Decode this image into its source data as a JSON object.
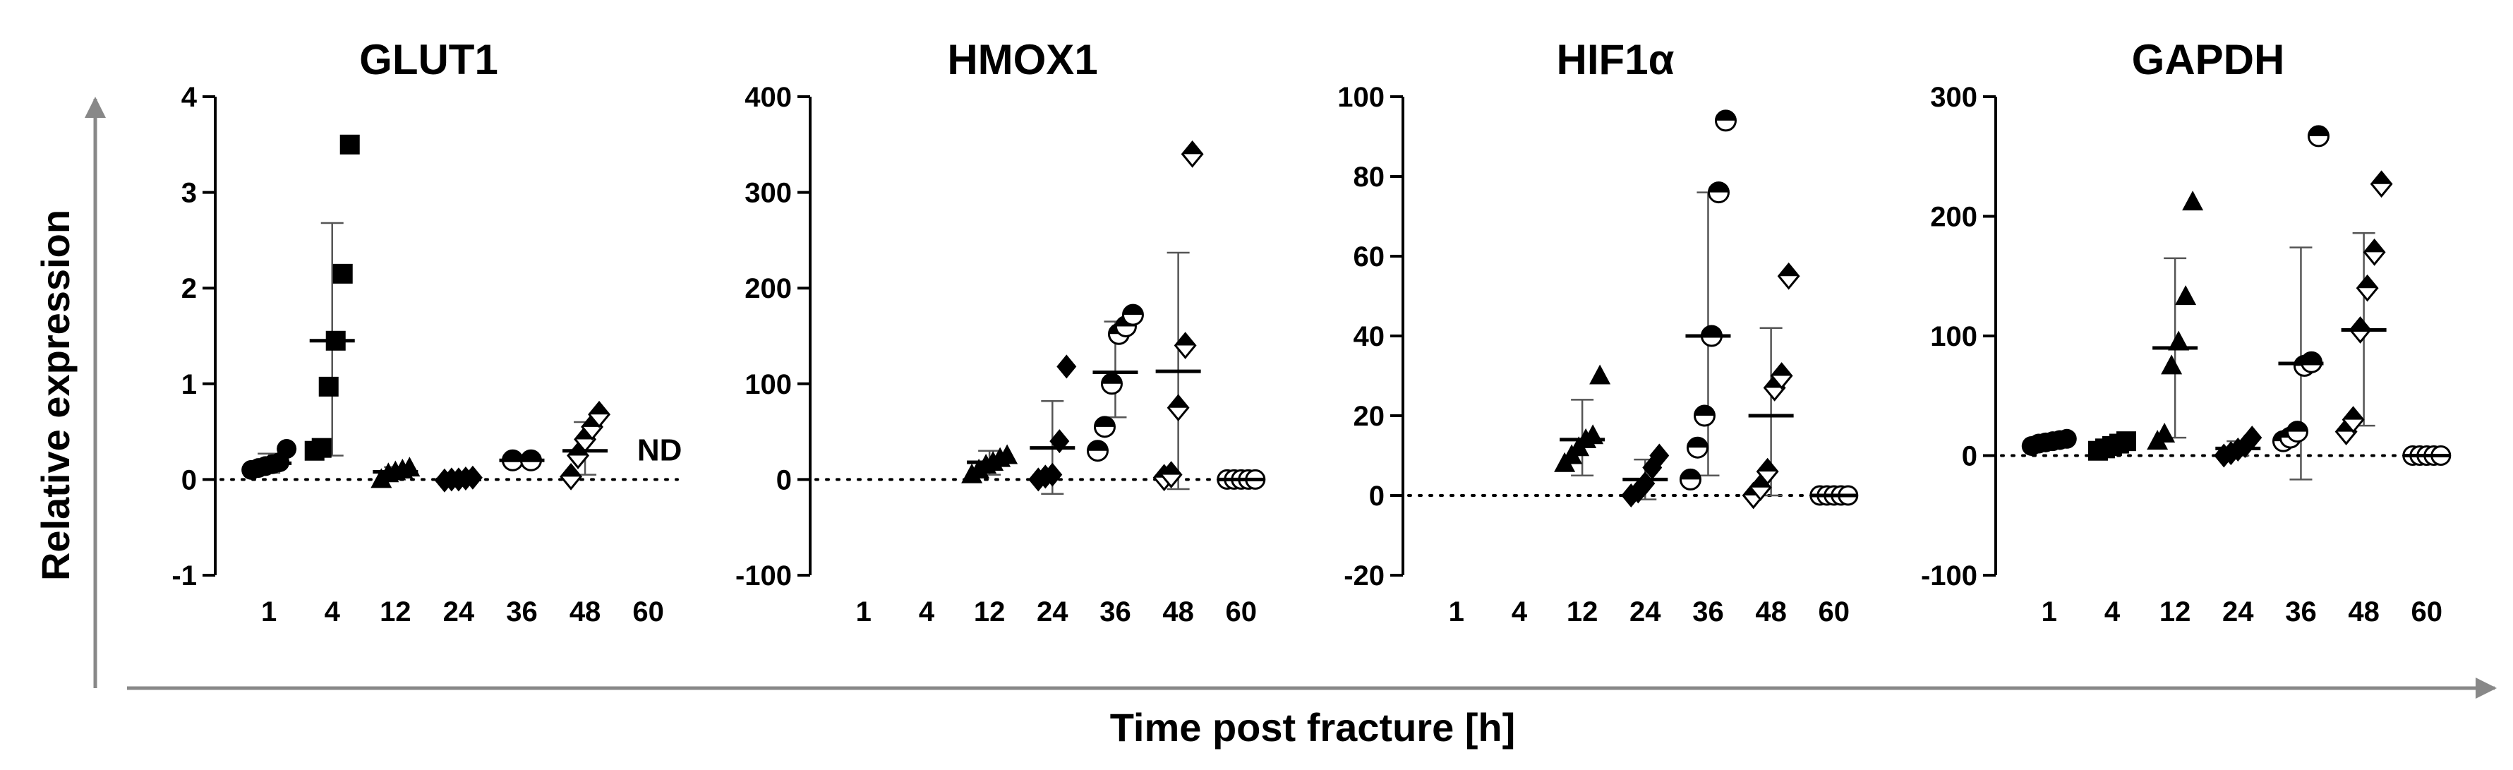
{
  "figure": {
    "ylabel": "Relative expression",
    "xlabel": "Time post fracture [h]"
  },
  "chart_data": [
    {
      "type": "scatter",
      "title": "GLUT1",
      "categories": [
        "1",
        "4",
        "12",
        "24",
        "36",
        "48",
        "60"
      ],
      "ylim": [
        -1,
        4
      ],
      "yticks": [
        -1,
        0,
        1,
        2,
        3,
        4
      ],
      "marker": "circle",
      "marker_fill": "full",
      "annotation": "ND",
      "groups": [
        {
          "x": "1",
          "points": [
            0.1,
            0.12,
            0.14,
            0.16,
            0.18,
            0.32
          ],
          "mean": 0.17,
          "sd_low": 0.07,
          "sd_high": 0.27
        },
        {
          "x": "4",
          "marker": "square",
          "points": [
            0.3,
            0.33,
            0.97,
            1.45,
            2.15,
            3.5
          ],
          "mean": 1.45,
          "sd_low": 0.25,
          "sd_high": 2.68
        },
        {
          "x": "12",
          "marker": "triangle",
          "points": [
            0.0,
            0.06,
            0.08,
            0.1,
            0.12
          ],
          "mean": 0.08,
          "sd_low": 0.03,
          "sd_high": 0.13
        },
        {
          "x": "24",
          "marker": "diamond",
          "points": [
            -0.01,
            0.0,
            0.0,
            0.01,
            0.02
          ],
          "mean": 0.0,
          "sd_low": -0.02,
          "sd_high": 0.02
        },
        {
          "x": "36",
          "marker": "circle-half",
          "points": [
            0.2,
            0.2
          ],
          "mean": 0.2
        },
        {
          "x": "48",
          "marker": "diamond-half",
          "points": [
            0.03,
            0.25,
            0.42,
            0.55,
            0.68
          ],
          "mean": 0.3,
          "sd_low": 0.05,
          "sd_high": 0.6
        },
        {
          "x": "60",
          "points": []
        }
      ]
    },
    {
      "type": "scatter",
      "title": "HMOX1",
      "categories": [
        "1",
        "4",
        "12",
        "24",
        "36",
        "48",
        "60"
      ],
      "ylim": [
        -100,
        400
      ],
      "yticks": [
        -100,
        0,
        100,
        200,
        300,
        400
      ],
      "groups": [
        {
          "x": "1",
          "points": []
        },
        {
          "x": "4",
          "points": []
        },
        {
          "x": "12",
          "marker": "triangle",
          "points": [
            5,
            10,
            15,
            18,
            22,
            25
          ],
          "mean": 18,
          "sd_low": 5,
          "sd_high": 30
        },
        {
          "x": "24",
          "marker": "diamond",
          "points": [
            0,
            3,
            5,
            40,
            118
          ],
          "mean": 33,
          "sd_low": -15,
          "sd_high": 82
        },
        {
          "x": "36",
          "marker": "circle-half",
          "points": [
            30,
            55,
            100,
            152,
            160,
            172
          ],
          "mean": 112,
          "sd_low": 65,
          "sd_high": 165
        },
        {
          "x": "48",
          "marker": "diamond-half",
          "points": [
            2,
            5,
            75,
            140,
            340
          ],
          "mean": 113,
          "sd_low": -10,
          "sd_high": 237
        },
        {
          "x": "60",
          "marker": "circle-open",
          "points": [
            0,
            0,
            0,
            0,
            0
          ],
          "mean": 0
        }
      ]
    },
    {
      "type": "scatter",
      "title": "HIF1α",
      "categories": [
        "1",
        "4",
        "12",
        "24",
        "36",
        "48",
        "60"
      ],
      "ylim": [
        -20,
        100
      ],
      "yticks": [
        -20,
        0,
        20,
        40,
        60,
        80,
        100
      ],
      "groups": [
        {
          "x": "1",
          "points": []
        },
        {
          "x": "4",
          "points": []
        },
        {
          "x": "12",
          "marker": "triangle",
          "points": [
            8,
            10,
            12,
            14,
            15,
            30
          ],
          "mean": 14,
          "sd_low": 5,
          "sd_high": 24
        },
        {
          "x": "24",
          "marker": "diamond",
          "points": [
            0,
            1,
            3,
            7,
            10
          ],
          "mean": 4,
          "sd_low": -1,
          "sd_high": 9
        },
        {
          "x": "36",
          "marker": "circle-half",
          "points": [
            4,
            12,
            20,
            40,
            76,
            94
          ],
          "mean": 40,
          "sd_low": 5,
          "sd_high": 76
        },
        {
          "x": "48",
          "marker": "diamond-half",
          "points": [
            0,
            2,
            6,
            27,
            30,
            55
          ],
          "mean": 20,
          "sd_low": 0,
          "sd_high": 42
        },
        {
          "x": "60",
          "marker": "circle-open",
          "points": [
            0,
            0,
            0,
            0,
            0
          ],
          "mean": 0
        }
      ]
    },
    {
      "type": "scatter",
      "title": "GAPDH",
      "categories": [
        "1",
        "4",
        "12",
        "24",
        "36",
        "48",
        "60"
      ],
      "ylim": [
        -100,
        300
      ],
      "yticks": [
        -100,
        0,
        100,
        200,
        300
      ],
      "groups": [
        {
          "x": "1",
          "marker": "circle",
          "points": [
            8,
            10,
            11,
            12,
            13,
            14
          ],
          "mean": 12,
          "sd_low": 8,
          "sd_high": 16
        },
        {
          "x": "4",
          "marker": "square",
          "points": [
            4,
            6,
            8,
            10,
            12
          ],
          "mean": 9,
          "sd_low": 5,
          "sd_high": 13
        },
        {
          "x": "12",
          "marker": "triangle",
          "points": [
            12,
            18,
            75,
            95,
            133,
            212
          ],
          "mean": 90,
          "sd_low": 15,
          "sd_high": 165
        },
        {
          "x": "24",
          "marker": "diamond",
          "points": [
            0,
            2,
            5,
            8,
            15
          ],
          "mean": 6,
          "sd_low": 0,
          "sd_high": 12
        },
        {
          "x": "36",
          "marker": "circle-half",
          "points": [
            12,
            15,
            20,
            75,
            78,
            267
          ],
          "mean": 77,
          "sd_low": -20,
          "sd_high": 174
        },
        {
          "x": "48",
          "marker": "diamond-half",
          "points": [
            20,
            30,
            105,
            140,
            170,
            227
          ],
          "mean": 105,
          "sd_low": 25,
          "sd_high": 186
        },
        {
          "x": "60",
          "marker": "circle-open",
          "points": [
            0,
            0,
            0,
            0,
            0
          ],
          "mean": 0
        }
      ]
    }
  ]
}
